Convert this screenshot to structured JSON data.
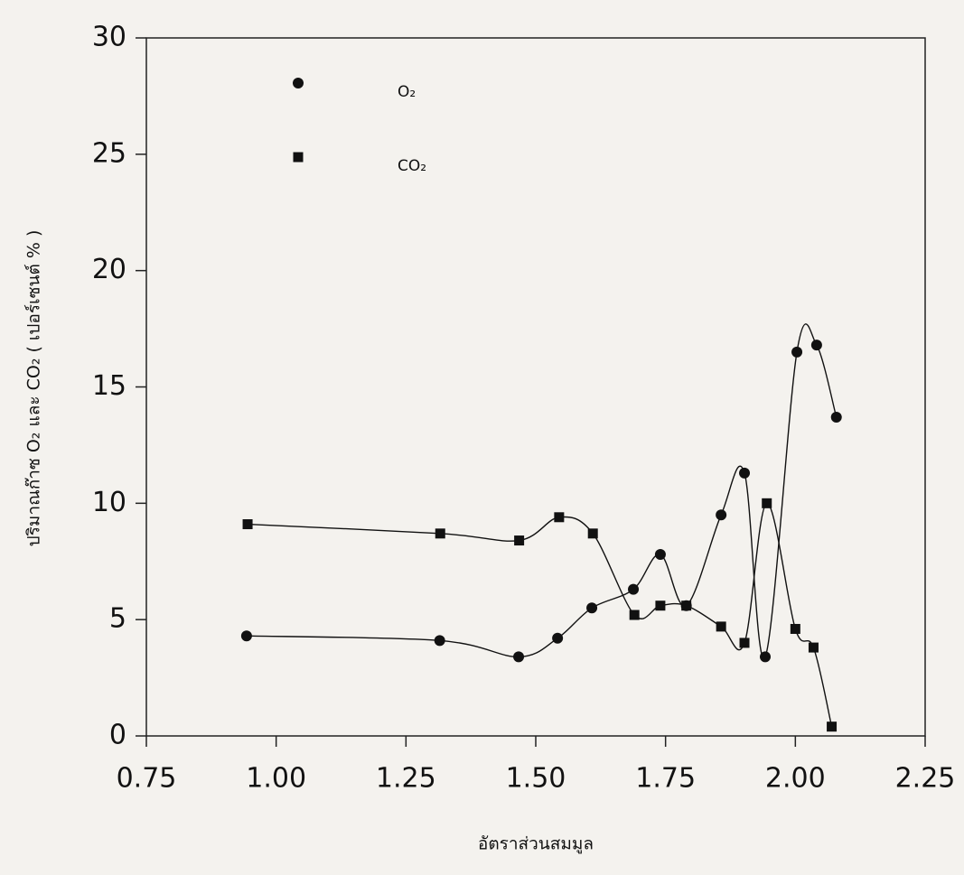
{
  "chart_data": {
    "type": "line",
    "x_label": "อัตราส่วนสมมูล",
    "y_label": "ปริมาณก๊าซ  O₂  และ  CO₂    ( เปอร์เซนต์ % )",
    "xlim": [
      0.75,
      2.25
    ],
    "xticks": [
      0.75,
      {
        "value": 1.0,
        "label": "1.00"
      },
      1.25,
      {
        "value": 1.5,
        "label": "1.50"
      },
      1.75,
      {
        "value": 2.0,
        "label": "2.00"
      },
      2.25
    ],
    "ylim": [
      0,
      30
    ],
    "yticks": [
      0,
      5,
      10,
      15,
      20,
      25,
      30
    ],
    "grid": false,
    "legend": "upper left",
    "series": [
      {
        "name": "O₂",
        "color": "#111111",
        "marker": "circle",
        "x": [
          0.943,
          1.315,
          1.467,
          1.542,
          1.608,
          1.688,
          1.74,
          1.79,
          1.857,
          1.902,
          1.942,
          2.003,
          2.041,
          2.079
        ],
        "values": [
          4.3,
          4.1,
          3.4,
          4.2,
          5.5,
          6.3,
          7.8,
          5.6,
          9.5,
          11.3,
          3.4,
          16.5,
          16.8,
          13.7
        ]
      },
      {
        "name": "CO₂",
        "color": "#111111",
        "marker": "square",
        "x": [
          0.945,
          1.316,
          1.468,
          1.545,
          1.61,
          1.69,
          1.74,
          1.79,
          1.857,
          1.902,
          1.945,
          2.0,
          2.035,
          2.07
        ],
        "values": [
          9.1,
          8.7,
          8.4,
          9.4,
          8.7,
          5.2,
          5.6,
          5.6,
          4.7,
          4.0,
          10.0,
          4.6,
          3.8,
          0.4
        ]
      }
    ]
  }
}
